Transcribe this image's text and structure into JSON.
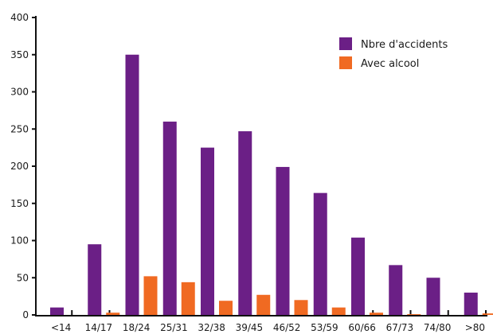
{
  "chart_data": {
    "type": "bar",
    "title": "",
    "xlabel": "",
    "ylabel": "",
    "ylim": [
      0,
      400
    ],
    "yticks": [
      0,
      50,
      100,
      150,
      200,
      250,
      300,
      350,
      400
    ],
    "categories": [
      "<14",
      "14/17",
      "18/24",
      "25/31",
      "32/38",
      "39/45",
      "46/52",
      "53/59",
      "60/66",
      "67/73",
      "74/80",
      ">80"
    ],
    "series": [
      {
        "name": "Nbre d'accidents",
        "color": "#6b1f86",
        "values": [
          10,
          95,
          350,
          260,
          225,
          247,
          199,
          164,
          104,
          67,
          50,
          30
        ]
      },
      {
        "name": "Avec alcool",
        "color": "#f06a22",
        "values": [
          0,
          3,
          52,
          44,
          19,
          27,
          20,
          10,
          3,
          1,
          0,
          2
        ]
      }
    ],
    "legend_position": "top-right",
    "grid": false
  }
}
